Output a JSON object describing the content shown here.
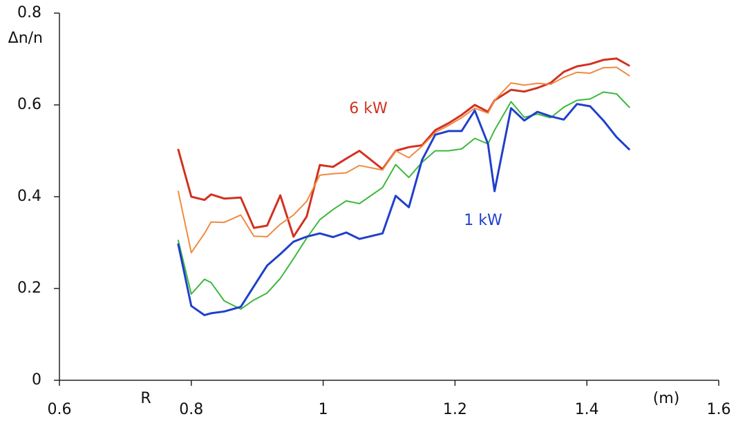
{
  "chart_data": {
    "type": "line",
    "ylabel": "Δn/n",
    "xlabel": "R",
    "xunit": "(m)",
    "x": [
      0.78,
      0.8,
      0.82,
      0.83,
      0.85,
      0.875,
      0.895,
      0.915,
      0.935,
      0.955,
      0.975,
      0.995,
      1.015,
      1.035,
      1.055,
      1.09,
      1.11,
      1.13,
      1.15,
      1.17,
      1.19,
      1.21,
      1.23,
      1.25,
      1.26,
      1.285,
      1.305,
      1.325,
      1.345,
      1.365,
      1.385,
      1.405,
      1.425,
      1.445,
      1.465
    ],
    "series": [
      {
        "name": "6 kW",
        "color": "#d2311f",
        "values": [
          0.504,
          0.4,
          0.393,
          0.405,
          0.396,
          0.398,
          0.332,
          0.337,
          0.403,
          0.313,
          0.357,
          0.469,
          0.465,
          0.483,
          0.5,
          0.46,
          0.5,
          0.508,
          0.512,
          0.545,
          0.56,
          0.578,
          0.6,
          0.585,
          0.61,
          0.633,
          0.629,
          0.637,
          0.648,
          0.672,
          0.684,
          0.689,
          0.698,
          0.701,
          0.685
        ]
      },
      {
        "color": "#f08a40",
        "values": [
          0.413,
          0.278,
          0.32,
          0.345,
          0.344,
          0.36,
          0.314,
          0.313,
          0.34,
          0.36,
          0.39,
          0.447,
          0.45,
          0.452,
          0.468,
          0.458,
          0.5,
          0.485,
          0.51,
          0.54,
          0.555,
          0.572,
          0.593,
          0.582,
          0.61,
          0.648,
          0.643,
          0.647,
          0.645,
          0.66,
          0.671,
          0.669,
          0.681,
          0.682,
          0.663
        ]
      },
      {
        "color": "#3cb83c",
        "values": [
          0.306,
          0.188,
          0.22,
          0.213,
          0.173,
          0.155,
          0.175,
          0.19,
          0.222,
          0.265,
          0.31,
          0.35,
          0.372,
          0.391,
          0.385,
          0.42,
          0.47,
          0.442,
          0.475,
          0.5,
          0.5,
          0.504,
          0.527,
          0.515,
          0.545,
          0.607,
          0.573,
          0.58,
          0.572,
          0.595,
          0.61,
          0.613,
          0.628,
          0.624,
          0.594
        ]
      },
      {
        "name": "1 kW",
        "color": "#1f3fcc",
        "values": [
          0.298,
          0.162,
          0.142,
          0.146,
          0.15,
          0.16,
          0.205,
          0.25,
          0.275,
          0.302,
          0.313,
          0.32,
          0.312,
          0.322,
          0.308,
          0.32,
          0.402,
          0.377,
          0.48,
          0.535,
          0.543,
          0.543,
          0.588,
          0.515,
          0.412,
          0.593,
          0.566,
          0.585,
          0.575,
          0.568,
          0.602,
          0.597,
          0.566,
          0.53,
          0.502
        ]
      }
    ],
    "xlim": [
      0.6,
      1.6
    ],
    "xticks": [
      0.6,
      0.8,
      1,
      1.2,
      1.4,
      1.6
    ],
    "ylim": [
      0,
      0.8
    ],
    "yticks": [
      0,
      0.2,
      0.4,
      0.6,
      0.8
    ]
  }
}
